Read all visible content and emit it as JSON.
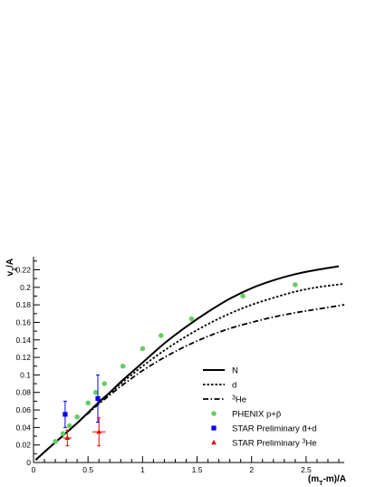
{
  "chart_data": {
    "type": "scatter",
    "xlabel": "(m_T-m)/A",
    "ylabel": "v_2/A",
    "xlim": [
      0,
      2.85
    ],
    "ylim": [
      0,
      0.235
    ],
    "x_ticks": [
      0,
      0.5,
      1,
      1.5,
      2,
      2.5
    ],
    "x_tick_labels": [
      "0",
      "0.5",
      "1",
      "1.5",
      "2",
      "2.5"
    ],
    "y_ticks": [
      0,
      0.02,
      0.04,
      0.06,
      0.08,
      0.1,
      0.12,
      0.14,
      0.16,
      0.18,
      0.2,
      0.22
    ],
    "y_tick_labels": [
      "0",
      "0.02",
      "0.04",
      "0.06",
      "0.08",
      "0.1",
      "0.12",
      "0.14",
      "0.16",
      "0.18",
      "0.2",
      "0.22"
    ],
    "legend_position": "bottom-right",
    "series": [
      {
        "name": "N",
        "kind": "curve",
        "style": "solid",
        "color": "#000000",
        "x": [
          0.02,
          0.1,
          0.2,
          0.3,
          0.4,
          0.5,
          0.6,
          0.7,
          0.8,
          0.9,
          1.0,
          1.2,
          1.4,
          1.6,
          1.8,
          2.0,
          2.2,
          2.4,
          2.6,
          2.8
        ],
        "y": [
          0.003,
          0.012,
          0.023,
          0.034,
          0.045,
          0.057,
          0.069,
          0.08,
          0.092,
          0.103,
          0.114,
          0.136,
          0.155,
          0.172,
          0.187,
          0.199,
          0.208,
          0.215,
          0.22,
          0.224
        ]
      },
      {
        "name": "d",
        "kind": "curve",
        "style": "dotted",
        "color": "#000000",
        "x": [
          0.02,
          0.1,
          0.2,
          0.3,
          0.4,
          0.5,
          0.6,
          0.7,
          0.8,
          0.9,
          1.0,
          1.2,
          1.4,
          1.6,
          1.8,
          2.0,
          2.2,
          2.4,
          2.6,
          2.85
        ],
        "y": [
          0.003,
          0.012,
          0.023,
          0.034,
          0.045,
          0.057,
          0.068,
          0.079,
          0.09,
          0.1,
          0.11,
          0.128,
          0.144,
          0.158,
          0.17,
          0.18,
          0.188,
          0.195,
          0.2,
          0.204
        ]
      },
      {
        "name": "3He",
        "kind": "curve",
        "style": "dash-dot",
        "color": "#000000",
        "x": [
          0.02,
          0.1,
          0.2,
          0.3,
          0.4,
          0.5,
          0.6,
          0.7,
          0.8,
          0.9,
          1.0,
          1.2,
          1.4,
          1.6,
          1.8,
          2.0,
          2.2,
          2.4,
          2.6,
          2.85
        ],
        "y": [
          0.003,
          0.012,
          0.023,
          0.034,
          0.045,
          0.056,
          0.067,
          0.077,
          0.087,
          0.096,
          0.105,
          0.12,
          0.133,
          0.144,
          0.153,
          0.16,
          0.166,
          0.171,
          0.175,
          0.18
        ]
      },
      {
        "name": "PHENIX p+p̄",
        "kind": "points",
        "marker": "circle",
        "color": "#66cc66",
        "x": [
          0.2,
          0.27,
          0.33,
          0.4,
          0.5,
          0.57,
          0.65,
          0.82,
          1.0,
          1.17,
          1.45,
          1.92,
          2.4
        ],
        "y": [
          0.024,
          0.033,
          0.042,
          0.052,
          0.068,
          0.08,
          0.09,
          0.11,
          0.13,
          0.145,
          0.164,
          0.19,
          0.203
        ]
      },
      {
        "name": "STAR Preliminary d̄+d",
        "kind": "points",
        "marker": "square",
        "color": "#0000ee",
        "x": [
          0.29,
          0.59
        ],
        "y": [
          0.055,
          0.073
        ],
        "yerr": [
          0.015,
          0.027
        ],
        "xerr": [
          0.0,
          0.0
        ]
      },
      {
        "name": "STAR Preliminary 3He",
        "kind": "points",
        "marker": "triangle",
        "color": "#ee0000",
        "x": [
          0.31,
          0.6
        ],
        "y": [
          0.028,
          0.035
        ],
        "yerr": [
          0.009,
          0.016
        ],
        "xerr": [
          0.04,
          0.06
        ]
      }
    ]
  }
}
